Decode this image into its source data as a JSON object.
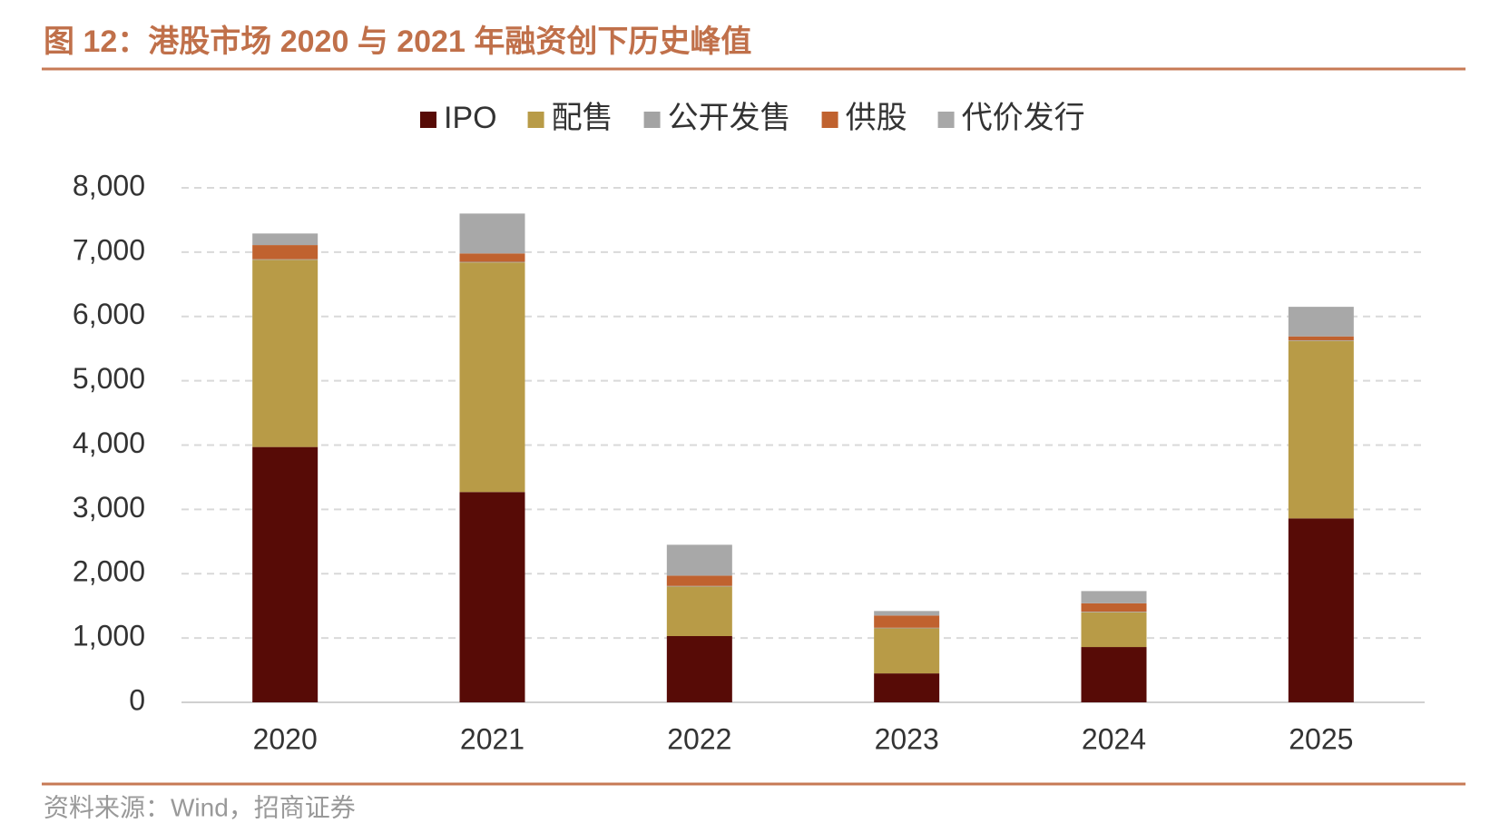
{
  "chart_data": {
    "type": "stacked_bar",
    "title": "图 12：港股市场 2020 与 2021 年融资创下历史峰值",
    "source": "资料来源：Wind，招商证券",
    "categories": [
      "2020",
      "2021",
      "2022",
      "2023",
      "2024",
      "2025"
    ],
    "series": [
      {
        "name": "IPO",
        "color": "#570b06",
        "values": [
          3970,
          3270,
          1030,
          450,
          860,
          2860
        ]
      },
      {
        "name": "配售",
        "color": "#b89b47",
        "values": [
          2910,
          3570,
          770,
          700,
          540,
          2760
        ]
      },
      {
        "name": "公开发售",
        "color": "#a3a3a3",
        "values": [
          10,
          10,
          10,
          10,
          10,
          10
        ]
      },
      {
        "name": "供股",
        "color": "#c0622f",
        "values": [
          220,
          130,
          160,
          190,
          130,
          60
        ]
      },
      {
        "name": "代价发行",
        "color": "#a8a8a8",
        "values": [
          180,
          620,
          480,
          70,
          190,
          460
        ]
      }
    ],
    "ylim": [
      0,
      8000
    ],
    "yticks": [
      0,
      {
        "value": 1000,
        "label": "1,000"
      },
      {
        "value": 2000,
        "label": "2,000"
      },
      {
        "value": 3000,
        "label": "3,000"
      },
      {
        "value": 4000,
        "label": "4,000"
      },
      {
        "value": 5000,
        "label": "5,000"
      },
      {
        "value": 6000,
        "label": "6,000"
      },
      {
        "value": 7000,
        "label": "7,000"
      },
      {
        "value": 8000,
        "label": "8,000"
      }
    ],
    "grid": true
  }
}
